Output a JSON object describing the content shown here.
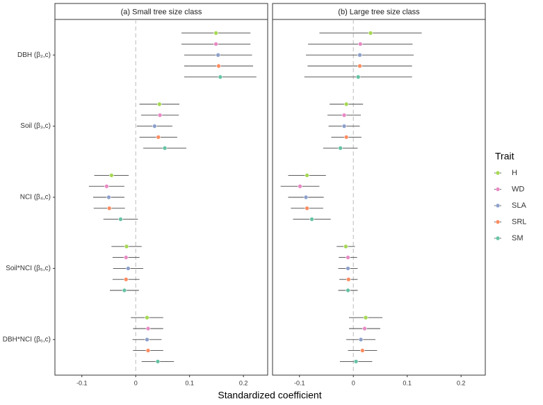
{
  "chart_data": {
    "type": "forest",
    "xlabel": "Standardized coefficient",
    "legend_title": "Trait",
    "categories": [
      "DBH (β₂,c)",
      "Soil (β₃,c)",
      "NCI (β₄,c)",
      "Soil*NCI (β₅,c)",
      "DBH*NCI (β₆,c)"
    ],
    "xlim": [
      -0.15,
      0.245
    ],
    "xticks": [
      -0.1,
      0,
      0.1,
      0.2
    ],
    "grid": false,
    "series": [
      {
        "name": "H",
        "color": "#a6d854"
      },
      {
        "name": "WD",
        "color": "#e78ac3"
      },
      {
        "name": "SLA",
        "color": "#8da0cb"
      },
      {
        "name": "SRL",
        "color": "#fc8d62"
      },
      {
        "name": "SM",
        "color": "#66c2a5"
      }
    ],
    "panels": [
      {
        "title": "(a) Small tree size class",
        "series": [
          {
            "values": [
              0.149,
              0.044,
              -0.045,
              -0.017,
              0.021
            ],
            "errors": [
              0.064,
              0.037,
              0.032,
              0.028,
              0.03
            ]
          },
          {
            "values": [
              0.149,
              0.045,
              -0.054,
              -0.018,
              0.023
            ],
            "errors": [
              0.064,
              0.035,
              0.033,
              0.025,
              0.028
            ]
          },
          {
            "values": [
              0.153,
              0.035,
              -0.05,
              -0.014,
              0.021
            ],
            "errors": [
              0.063,
              0.033,
              0.029,
              0.028,
              0.027
            ]
          },
          {
            "values": [
              0.154,
              0.042,
              -0.049,
              -0.018,
              0.023
            ],
            "errors": [
              0.064,
              0.035,
              0.029,
              0.025,
              0.028
            ]
          },
          {
            "values": [
              0.157,
              0.054,
              -0.028,
              -0.021,
              0.041
            ],
            "errors": [
              0.067,
              0.04,
              0.032,
              0.027,
              0.03
            ]
          }
        ]
      },
      {
        "title": "(b) Large tree size class",
        "series": [
          {
            "values": [
              0.032,
              -0.013,
              -0.086,
              -0.014,
              0.023
            ],
            "errors": [
              0.095,
              0.031,
              0.035,
              0.017,
              0.031
            ]
          },
          {
            "values": [
              0.013,
              -0.017,
              -0.099,
              -0.01,
              0.021
            ],
            "errors": [
              0.097,
              0.031,
              0.036,
              0.017,
              0.029
            ]
          },
          {
            "values": [
              0.012,
              -0.017,
              -0.088,
              -0.01,
              0.014
            ],
            "errors": [
              0.1,
              0.029,
              0.033,
              0.018,
              0.027
            ]
          },
          {
            "values": [
              0.012,
              -0.013,
              -0.086,
              -0.009,
              0.017
            ],
            "errors": [
              0.097,
              0.028,
              0.03,
              0.017,
              0.027
            ]
          },
          {
            "values": [
              0.009,
              -0.024,
              -0.077,
              -0.01,
              0.005
            ],
            "errors": [
              0.1,
              0.032,
              0.035,
              0.018,
              0.03
            ]
          }
        ]
      }
    ]
  }
}
